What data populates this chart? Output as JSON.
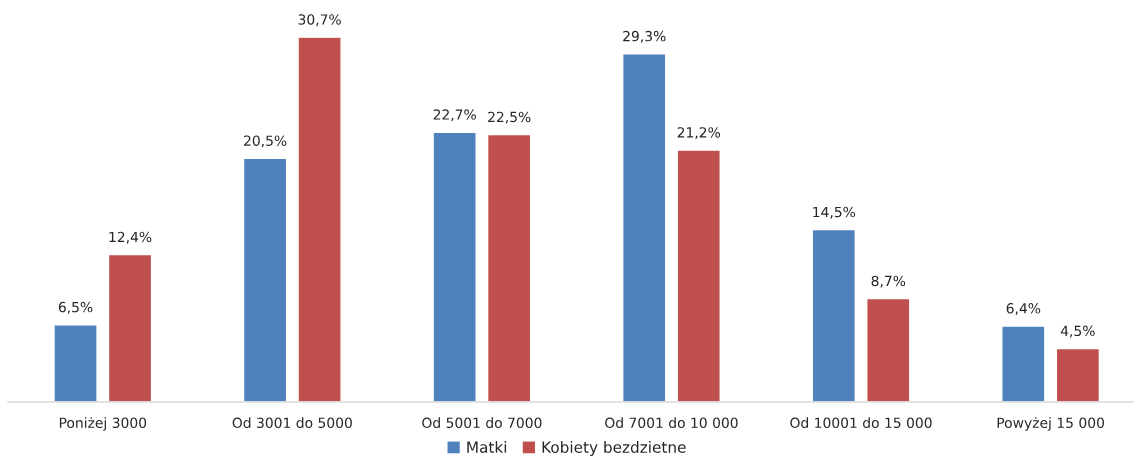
{
  "chart_data": {
    "type": "bar",
    "categories": [
      "Poniżej 3000",
      "Od 3001 do 5000",
      "Od 5001 do 7000",
      "Od 7001 do 10 000",
      "Od 10001 do 15 000",
      "Powyżej 15 000"
    ],
    "series": [
      {
        "name": "Matki",
        "color": "#4f81bd",
        "values": [
          6.5,
          20.5,
          22.7,
          29.3,
          14.5,
          6.4
        ],
        "value_labels": [
          "6,5%",
          "20,5%",
          "22,7%",
          "29,3%",
          "14,5%",
          "6,4%"
        ]
      },
      {
        "name": "Kobiety bezdzietne",
        "color": "#c0504d",
        "values": [
          12.4,
          30.7,
          22.5,
          21.2,
          8.7,
          4.5
        ],
        "value_labels": [
          "12,4%",
          "30,7%",
          "22,5%",
          "21,2%",
          "8,7%",
          "4,5%"
        ]
      }
    ],
    "legend": "bottom",
    "grid": false,
    "tick_labels": "x"
  }
}
